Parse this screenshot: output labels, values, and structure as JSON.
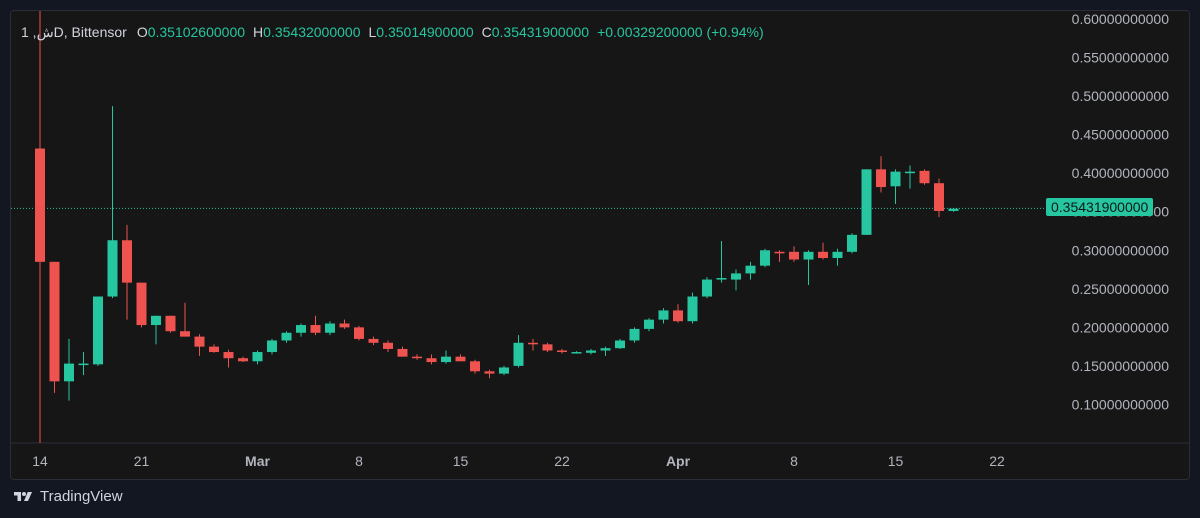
{
  "legend": {
    "symbol": "1 ,ﺵD, Bittensor",
    "open_label": "O",
    "open": "0.35102600000",
    "high_label": "H",
    "high": "0.35432000000",
    "low_label": "L",
    "low": "0.35014900000",
    "close_label": "C",
    "close": "0.35431900000",
    "change": "+0.00329200000 (+0.94%)"
  },
  "last_price_label": "0.35431900000",
  "brand": "TradingView",
  "colors": {
    "up": "#26c6a0",
    "down": "#ef5350",
    "background": "#161616",
    "text": "#d1d4dc"
  },
  "chart_data": {
    "type": "candlestick",
    "title": "",
    "ylim": [
      0.05,
      0.6
    ],
    "y_ticks": [
      "0.10000000000",
      "0.15000000000",
      "0.20000000000",
      "0.25000000000",
      "0.30000000000",
      "0.35000000000",
      "0.40000000000",
      "0.45000000000",
      "0.50000000000",
      "0.55000000000",
      "0.60000000000"
    ],
    "x_ticks": [
      "14",
      "21",
      "Mar",
      "8",
      "15",
      "22",
      "Apr",
      "8",
      "15",
      "22"
    ],
    "last_price": 0.354319,
    "candles": [
      {
        "o": 0.432,
        "h": 0.432,
        "l": 0.05,
        "c": 0.285
      },
      {
        "o": 0.285,
        "h": 0.285,
        "l": 0.115,
        "c": 0.13
      },
      {
        "o": 0.13,
        "h": 0.185,
        "l": 0.105,
        "c": 0.153
      },
      {
        "o": 0.153,
        "h": 0.168,
        "l": 0.138,
        "c": 0.153
      },
      {
        "o": 0.152,
        "h": 0.24,
        "l": 0.15,
        "c": 0.24
      },
      {
        "o": 0.24,
        "h": 0.487,
        "l": 0.238,
        "c": 0.313
      },
      {
        "o": 0.313,
        "h": 0.333,
        "l": 0.21,
        "c": 0.258
      },
      {
        "o": 0.258,
        "h": 0.258,
        "l": 0.2,
        "c": 0.203
      },
      {
        "o": 0.203,
        "h": 0.215,
        "l": 0.178,
        "c": 0.215
      },
      {
        "o": 0.215,
        "h": 0.215,
        "l": 0.193,
        "c": 0.195
      },
      {
        "o": 0.195,
        "h": 0.232,
        "l": 0.188,
        "c": 0.188
      },
      {
        "o": 0.188,
        "h": 0.191,
        "l": 0.163,
        "c": 0.175
      },
      {
        "o": 0.175,
        "h": 0.178,
        "l": 0.167,
        "c": 0.168
      },
      {
        "o": 0.168,
        "h": 0.171,
        "l": 0.148,
        "c": 0.16
      },
      {
        "o": 0.16,
        "h": 0.162,
        "l": 0.155,
        "c": 0.156
      },
      {
        "o": 0.156,
        "h": 0.17,
        "l": 0.152,
        "c": 0.168
      },
      {
        "o": 0.168,
        "h": 0.185,
        "l": 0.165,
        "c": 0.183
      },
      {
        "o": 0.183,
        "h": 0.195,
        "l": 0.18,
        "c": 0.193
      },
      {
        "o": 0.193,
        "h": 0.205,
        "l": 0.188,
        "c": 0.203
      },
      {
        "o": 0.203,
        "h": 0.215,
        "l": 0.19,
        "c": 0.193
      },
      {
        "o": 0.193,
        "h": 0.208,
        "l": 0.19,
        "c": 0.205
      },
      {
        "o": 0.205,
        "h": 0.21,
        "l": 0.198,
        "c": 0.2
      },
      {
        "o": 0.2,
        "h": 0.202,
        "l": 0.183,
        "c": 0.185
      },
      {
        "o": 0.185,
        "h": 0.188,
        "l": 0.177,
        "c": 0.18
      },
      {
        "o": 0.18,
        "h": 0.183,
        "l": 0.168,
        "c": 0.172
      },
      {
        "o": 0.172,
        "h": 0.175,
        "l": 0.162,
        "c": 0.162
      },
      {
        "o": 0.162,
        "h": 0.165,
        "l": 0.158,
        "c": 0.16
      },
      {
        "o": 0.16,
        "h": 0.165,
        "l": 0.152,
        "c": 0.155
      },
      {
        "o": 0.155,
        "h": 0.17,
        "l": 0.153,
        "c": 0.162
      },
      {
        "o": 0.162,
        "h": 0.165,
        "l": 0.156,
        "c": 0.156
      },
      {
        "o": 0.156,
        "h": 0.158,
        "l": 0.14,
        "c": 0.143
      },
      {
        "o": 0.143,
        "h": 0.145,
        "l": 0.134,
        "c": 0.14
      },
      {
        "o": 0.14,
        "h": 0.15,
        "l": 0.138,
        "c": 0.148
      },
      {
        "o": 0.15,
        "h": 0.19,
        "l": 0.148,
        "c": 0.18
      },
      {
        "o": 0.18,
        "h": 0.185,
        "l": 0.17,
        "c": 0.178
      },
      {
        "o": 0.178,
        "h": 0.18,
        "l": 0.168,
        "c": 0.17
      },
      {
        "o": 0.17,
        "h": 0.172,
        "l": 0.166,
        "c": 0.168
      },
      {
        "o": 0.168,
        "h": 0.169,
        "l": 0.166,
        "c": 0.168
      },
      {
        "o": 0.167,
        "h": 0.172,
        "l": 0.165,
        "c": 0.17
      },
      {
        "o": 0.17,
        "h": 0.175,
        "l": 0.163,
        "c": 0.173
      },
      {
        "o": 0.173,
        "h": 0.185,
        "l": 0.172,
        "c": 0.183
      },
      {
        "o": 0.183,
        "h": 0.2,
        "l": 0.18,
        "c": 0.198
      },
      {
        "o": 0.198,
        "h": 0.212,
        "l": 0.195,
        "c": 0.21
      },
      {
        "o": 0.21,
        "h": 0.225,
        "l": 0.205,
        "c": 0.222
      },
      {
        "o": 0.222,
        "h": 0.23,
        "l": 0.206,
        "c": 0.208
      },
      {
        "o": 0.208,
        "h": 0.245,
        "l": 0.205,
        "c": 0.24
      },
      {
        "o": 0.24,
        "h": 0.265,
        "l": 0.238,
        "c": 0.262
      },
      {
        "o": 0.262,
        "h": 0.312,
        "l": 0.258,
        "c": 0.264
      },
      {
        "o": 0.262,
        "h": 0.275,
        "l": 0.248,
        "c": 0.27
      },
      {
        "o": 0.27,
        "h": 0.285,
        "l": 0.262,
        "c": 0.28
      },
      {
        "o": 0.28,
        "h": 0.302,
        "l": 0.278,
        "c": 0.3
      },
      {
        "o": 0.298,
        "h": 0.3,
        "l": 0.285,
        "c": 0.296
      },
      {
        "o": 0.298,
        "h": 0.305,
        "l": 0.285,
        "c": 0.288
      },
      {
        "o": 0.288,
        "h": 0.3,
        "l": 0.255,
        "c": 0.298
      },
      {
        "o": 0.298,
        "h": 0.31,
        "l": 0.288,
        "c": 0.29
      },
      {
        "o": 0.29,
        "h": 0.302,
        "l": 0.28,
        "c": 0.298
      },
      {
        "o": 0.298,
        "h": 0.322,
        "l": 0.296,
        "c": 0.32
      },
      {
        "o": 0.32,
        "h": 0.405,
        "l": 0.32,
        "c": 0.405
      },
      {
        "o": 0.405,
        "h": 0.422,
        "l": 0.375,
        "c": 0.382
      },
      {
        "o": 0.383,
        "h": 0.405,
        "l": 0.36,
        "c": 0.402
      },
      {
        "o": 0.4,
        "h": 0.41,
        "l": 0.38,
        "c": 0.402
      },
      {
        "o": 0.403,
        "h": 0.405,
        "l": 0.385,
        "c": 0.387
      },
      {
        "o": 0.387,
        "h": 0.393,
        "l": 0.343,
        "c": 0.351
      },
      {
        "o": 0.351,
        "h": 0.354,
        "l": 0.35,
        "c": 0.354
      }
    ]
  }
}
